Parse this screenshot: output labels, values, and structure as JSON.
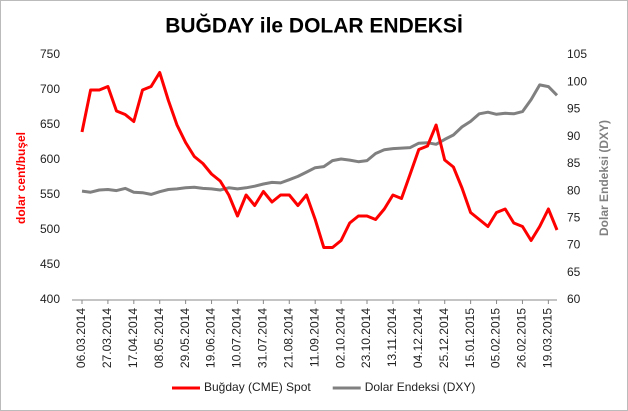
{
  "chart_data": {
    "type": "line",
    "title": "BUĞDAY ile DOLAR ENDEKSİ",
    "ylabel": "dolar cent/buşel",
    "y2label": "Dolar Endeksi (DXY)",
    "categories": [
      "06.03.2014",
      null,
      null,
      "27.03.2014",
      null,
      null,
      "17.04.2014",
      null,
      null,
      "08.05.2014",
      null,
      null,
      "29.05.2014",
      null,
      null,
      "19.06.2014",
      null,
      null,
      "10.07.2014",
      null,
      null,
      "31.07.2014",
      null,
      null,
      "21.08.2014",
      null,
      null,
      "11.09.2014",
      null,
      null,
      "02.10.2014",
      null,
      null,
      "23.10.2014",
      null,
      null,
      "13.11.2014",
      null,
      null,
      "04.12.2014",
      null,
      null,
      "25.12.2014",
      null,
      null,
      "15.01.2015",
      null,
      null,
      "05.02.2015",
      null,
      null,
      "26.02.2015",
      null,
      null,
      "19.03.2015",
      null
    ],
    "series": [
      {
        "name": "Buğday (CME) Spot",
        "color": "#ff0000",
        "axis": "y",
        "values": [
          640,
          700,
          700,
          705,
          670,
          665,
          655,
          700,
          705,
          725,
          685,
          650,
          625,
          605,
          595,
          580,
          570,
          550,
          520,
          550,
          535,
          555,
          540,
          550,
          550,
          535,
          550,
          515,
          475,
          475,
          485,
          510,
          520,
          520,
          515,
          530,
          550,
          545,
          580,
          615,
          620,
          650,
          600,
          590,
          560,
          525,
          515,
          505,
          525,
          530,
          510,
          505,
          485,
          505,
          530,
          500
        ]
      },
      {
        "name": "Dolar Endeksi (DXY)",
        "color": "#808080",
        "axis": "y2",
        "values": [
          80,
          79.8,
          80.2,
          80.3,
          80.1,
          80.5,
          79.8,
          79.7,
          79.4,
          79.9,
          80.3,
          80.4,
          80.6,
          80.7,
          80.5,
          80.4,
          80.2,
          80.6,
          80.4,
          80.6,
          80.9,
          81.3,
          81.6,
          81.5,
          82.1,
          82.7,
          83.5,
          84.3,
          84.5,
          85.6,
          85.9,
          85.7,
          85.4,
          85.6,
          86.9,
          87.6,
          87.8,
          87.9,
          88,
          88.8,
          88.9,
          88.6,
          89.5,
          90.3,
          91.8,
          92.8,
          94.2,
          94.5,
          94.1,
          94.3,
          94.2,
          94.6,
          96.8,
          99.5,
          99.2,
          97.6
        ]
      }
    ],
    "ylim": [
      400,
      750
    ],
    "yticks": [
      400,
      450,
      500,
      550,
      600,
      650,
      700,
      750
    ],
    "y2lim": [
      60,
      105
    ],
    "y2ticks": [
      60,
      65,
      70,
      75,
      80,
      85,
      90,
      95,
      100,
      105
    ],
    "legend": "bottom",
    "grid": false
  }
}
